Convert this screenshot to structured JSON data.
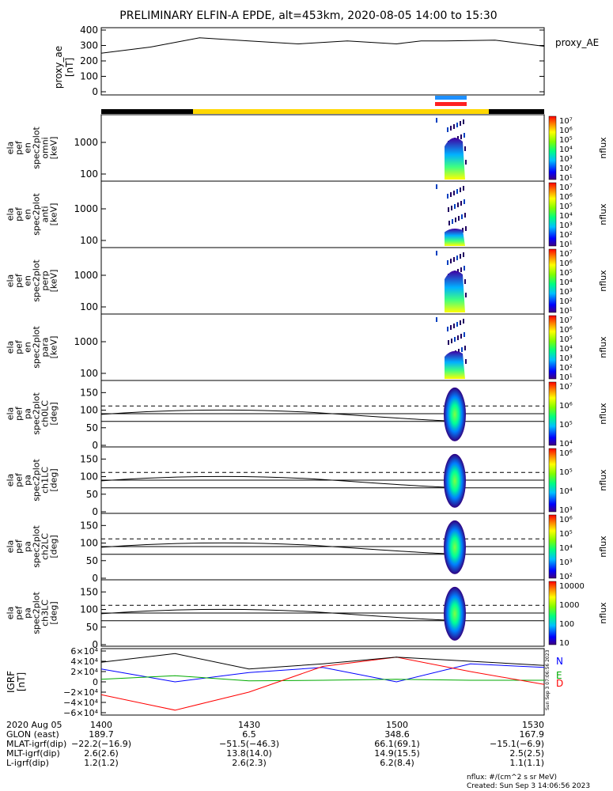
{
  "title": "PRELIMINARY ELFIN-A EPDE, alt=453km, 2020-08-05 14:00 to 15:30",
  "proxy": {
    "ylabel": [
      "proxy_ae",
      "[nT]"
    ],
    "legend": "proxy_AE",
    "yticks": [
      "400",
      "300",
      "200",
      "100",
      "0"
    ]
  },
  "energy_panels": [
    {
      "label": [
        "ela",
        "pef",
        "en",
        "spec2plot",
        "omni",
        "[keV]"
      ],
      "cbar_ticks": [
        "10⁷",
        "10⁶",
        "10⁵",
        "10⁴",
        "10³",
        "10²",
        "10¹"
      ]
    },
    {
      "label": [
        "ela",
        "pef",
        "en",
        "spec2plot",
        "anti",
        "[keV]"
      ],
      "cbar_ticks": [
        "10⁷",
        "10⁶",
        "10⁵",
        "10⁴",
        "10³",
        "10²",
        "10¹"
      ]
    },
    {
      "label": [
        "ela",
        "pef",
        "en",
        "spec2plot",
        "perp",
        "[keV]"
      ],
      "cbar_ticks": [
        "10⁷",
        "10⁶",
        "10⁵",
        "10⁴",
        "10³",
        "10²",
        "10¹"
      ]
    },
    {
      "label": [
        "ela",
        "pef",
        "en",
        "spec2plot",
        "para",
        "[keV]"
      ],
      "cbar_ticks": [
        "10⁷",
        "10⁶",
        "10⁵",
        "10⁴",
        "10³",
        "10²",
        "10¹"
      ]
    }
  ],
  "energy_yticks": [
    "1000",
    "100"
  ],
  "pa_panels": [
    {
      "label": [
        "ela",
        "pef",
        "pa",
        "spec2plot",
        "ch0LC",
        "[deg]"
      ],
      "cbar_ticks": [
        "10⁷",
        "10⁶",
        "10⁵",
        "10⁴"
      ]
    },
    {
      "label": [
        "ela",
        "pef",
        "pa",
        "spec2plot",
        "ch1LC",
        "[deg]"
      ],
      "cbar_ticks": [
        "10⁶",
        "10⁵",
        "10⁴",
        "10³"
      ]
    },
    {
      "label": [
        "ela",
        "pef",
        "pa",
        "spec2plot",
        "ch2LC",
        "[deg]"
      ],
      "cbar_ticks": [
        "10⁶",
        "10⁵",
        "10⁴",
        "10³",
        "10²"
      ]
    },
    {
      "label": [
        "ela",
        "pef",
        "pa",
        "spec2plot",
        "ch3LC",
        "[deg]"
      ],
      "cbar_ticks": [
        "10000",
        "1000",
        "100",
        "10"
      ]
    }
  ],
  "pa_yticks": [
    "150",
    "100",
    "50",
    "0"
  ],
  "cbar_label": "nflux",
  "igrf": {
    "ylabel": [
      "IGRF",
      "[nT]"
    ],
    "yticks": [
      "6×10⁴",
      "4×10⁴",
      "2×10⁴",
      "0",
      "−2×10⁴",
      "−4×10⁴",
      "−6×10⁴"
    ],
    "legend": [
      "N",
      "E",
      "D"
    ],
    "legend_colors": [
      "#0000ff",
      "#00aa00",
      "#ff0000"
    ],
    "side_note": "Sun Sep  3 07:06:56 2023"
  },
  "footer": {
    "rows": [
      {
        "label": "2020 Aug 05",
        "values": [
          "1400",
          "1430",
          "1500",
          "1530"
        ]
      },
      {
        "label": "GLON (east)",
        "values": [
          "189.7",
          "6.5",
          "348.6",
          "167.9"
        ]
      },
      {
        "label": "MLAT-igrf(dip)",
        "values": [
          "−22.2(−16.9)",
          "−51.5(−46.3)",
          "66.1(69.1)",
          "−15.1(−6.9)"
        ]
      },
      {
        "label": "MLT-igrf(dip)",
        "values": [
          "2.6(2.6)",
          "13.8(14.0)",
          "14.9(15.5)",
          "2.5(2.5)"
        ]
      },
      {
        "label": "L-igrf(dip)",
        "values": [
          "1.2(1.2)",
          "2.6(2.3)",
          "6.2(8.4)",
          "1.1(1.1)"
        ]
      }
    ],
    "units_note": "nflux: #/(cm^2 s sr MeV)",
    "created": "Created: Sun Sep  3 14:06:56 2023"
  },
  "colors": {
    "night_bar": "#000000",
    "sunlit_bar": "#ffd700",
    "indicator_top": "#1e90ff",
    "indicator_bottom": "#ff2020"
  },
  "chart_data": {
    "type": "line",
    "x_time_range": [
      "14:00",
      "15:30"
    ],
    "proxy_ae": {
      "ylim": [
        0,
        400
      ],
      "x": [
        "14:00",
        "14:10",
        "14:20",
        "14:30",
        "14:40",
        "14:50",
        "15:00",
        "15:05",
        "15:10",
        "15:20",
        "15:30"
      ],
      "values": [
        250,
        290,
        350,
        330,
        310,
        330,
        310,
        330,
        330,
        335,
        295
      ]
    },
    "igrf": {
      "ylim": [
        -60000,
        60000
      ],
      "x": [
        "14:00",
        "14:15",
        "14:30",
        "14:45",
        "15:00",
        "15:15",
        "15:30"
      ],
      "series": [
        {
          "name": "N",
          "values": [
            25000,
            0,
            18000,
            28000,
            0,
            35000,
            28000
          ]
        },
        {
          "name": "E",
          "values": [
            5000,
            12000,
            2000,
            3000,
            5000,
            3000,
            3000
          ]
        },
        {
          "name": "D",
          "values": [
            -25000,
            -55000,
            -20000,
            30000,
            48000,
            20000,
            -5000
          ]
        },
        {
          "values": [
            38000,
            55000,
            25000,
            35000,
            48000,
            40000,
            32000
          ]
        }
      ]
    }
  }
}
